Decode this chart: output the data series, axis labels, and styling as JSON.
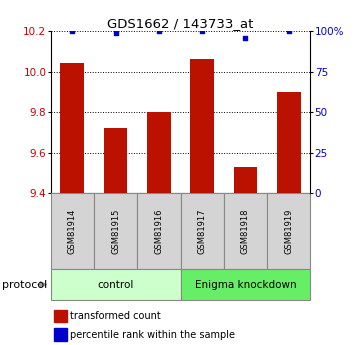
{
  "title": "GDS1662 / 143733_at",
  "samples": [
    "GSM81914",
    "GSM81915",
    "GSM81916",
    "GSM81917",
    "GSM81918",
    "GSM81919"
  ],
  "bar_values": [
    10.04,
    9.72,
    9.8,
    10.06,
    9.53,
    9.9
  ],
  "percentile_values": [
    100,
    99,
    100,
    100,
    96,
    100
  ],
  "ymin": 9.4,
  "ymax": 10.2,
  "yticks": [
    9.4,
    9.6,
    9.8,
    10.0,
    10.2
  ],
  "right_yticks": [
    0,
    25,
    50,
    75,
    100
  ],
  "bar_color": "#bb1100",
  "percentile_color": "#0000cc",
  "groups": [
    {
      "label": "control",
      "start": 0,
      "end": 3,
      "color": "#ccffcc"
    },
    {
      "label": "Enigma knockdown",
      "start": 3,
      "end": 6,
      "color": "#66ee66"
    }
  ],
  "protocol_label": "protocol",
  "legend_bar_label": "transformed count",
  "legend_dot_label": "percentile rank within the sample",
  "label_color_left": "#cc0000",
  "label_color_right": "#0000cc",
  "cell_color": "#d4d4d4",
  "cell_border_color": "#888888"
}
